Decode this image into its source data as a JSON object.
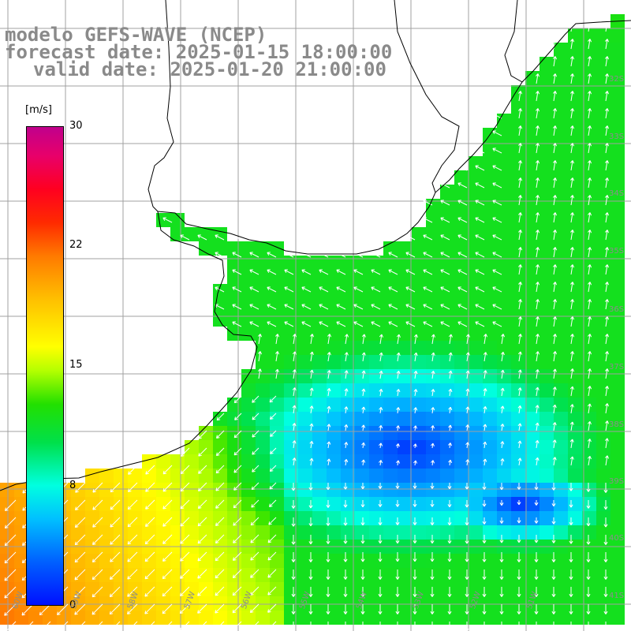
{
  "title": {
    "line1": "modelo GEFS-WAVE (NCEP)",
    "line2": "forecast date: 2025-01-15 18:00:00",
    "line3": "valid date: 2025-01-20 21:00:00"
  },
  "colorbar": {
    "unit": "[m/s]",
    "ticks": [
      "30",
      "22",
      "15",
      "8",
      "0"
    ],
    "range": [
      0,
      30
    ],
    "colors": {
      "top": "#c0008c",
      "red": "#ff0020",
      "orange": "#ff7a00",
      "yellow": "#ffff00",
      "green": "#22e000",
      "cyan": "#00ffe0",
      "blue": "#0010ff"
    }
  },
  "map": {
    "variable": "wind speed and direction",
    "lat_labels": [
      "32S",
      "33S",
      "34S",
      "35S",
      "36S",
      "37S",
      "38S",
      "39S",
      "40S",
      "41S"
    ],
    "lon_labels": [
      "60W",
      "59W",
      "58W",
      "57W",
      "56W",
      "55W",
      "54W",
      "53W",
      "52W",
      "51W"
    ],
    "land_color": "#ffffff",
    "coastline_color": "#000000",
    "grid_color": "#a0a0a0",
    "arrow_color": "#ffffff"
  }
}
